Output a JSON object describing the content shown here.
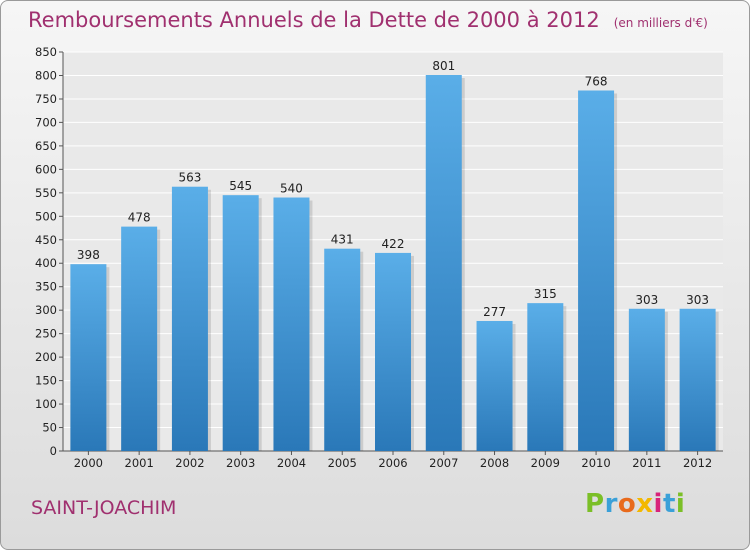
{
  "header": {
    "title": "Remboursements Annuels de la Dette de 2000 à 2012",
    "unit": "(en milliers d'€)"
  },
  "footer": {
    "location": "SAINT-JOACHIM",
    "brand": "Proxiti"
  },
  "colors": {
    "title": "#a0306f",
    "bar_top": "#5aaee8",
    "bar_bottom": "#2a78b8",
    "grid": "#ffffff"
  },
  "chart_data": {
    "type": "bar",
    "title": "Remboursements Annuels de la Dette de 2000 à 2012",
    "subtitle": "(en milliers d'€)",
    "categories": [
      "2000",
      "2001",
      "2002",
      "2003",
      "2004",
      "2005",
      "2006",
      "2007",
      "2008",
      "2009",
      "2010",
      "2011",
      "2012"
    ],
    "values": [
      398,
      478,
      563,
      545,
      540,
      431,
      422,
      801,
      277,
      315,
      768,
      303,
      303
    ],
    "ylim": [
      0,
      850
    ],
    "ytick_step": 50,
    "grid": true,
    "data_labels": true
  }
}
